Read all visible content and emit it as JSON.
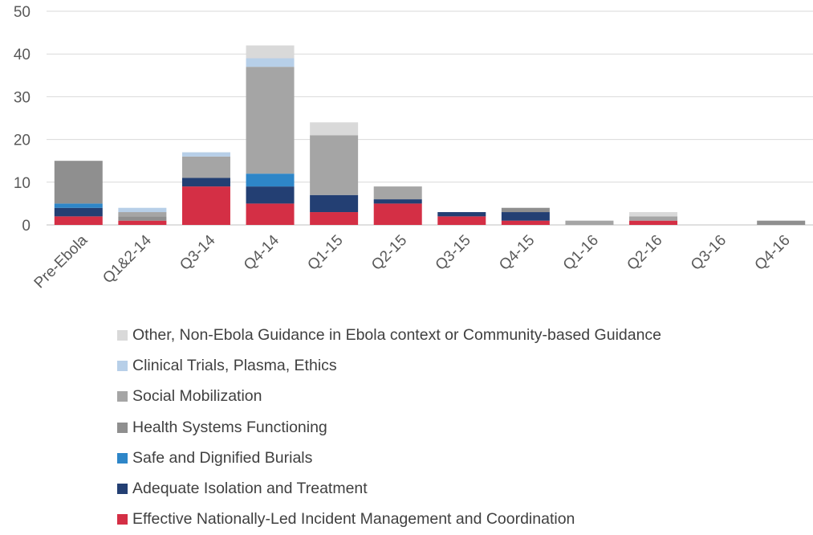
{
  "chart_data": {
    "type": "bar",
    "stacked": true,
    "categories": [
      "Pre-Ebola",
      "Q1&2-14",
      "Q3-14",
      "Q4-14",
      "Q1-15",
      "Q2-15",
      "Q3-15",
      "Q4-15",
      "Q1-16",
      "Q2-16",
      "Q3-16",
      "Q4-16"
    ],
    "ylim": [
      0,
      50
    ],
    "yticks": [
      0,
      10,
      20,
      30,
      40,
      50
    ],
    "grid": true,
    "legend_position": "bottom",
    "series": [
      {
        "name": "Effective Nationally-Led Incident Management and Coordination",
        "color": "#d42f45",
        "values": [
          2,
          1,
          9,
          5,
          3,
          5,
          2,
          1,
          0,
          1,
          0,
          0
        ]
      },
      {
        "name": "Adequate Isolation and Treatment",
        "color": "#233f73",
        "values": [
          2,
          0,
          2,
          4,
          4,
          1,
          1,
          2,
          0,
          0,
          0,
          0
        ]
      },
      {
        "name": "Safe and Dignified Burials",
        "color": "#2e86c8",
        "values": [
          1,
          0,
          0,
          3,
          0,
          0,
          0,
          0,
          0,
          0,
          0,
          0
        ]
      },
      {
        "name": "Health Systems Functioning",
        "color": "#8f8f8f",
        "values": [
          10,
          1,
          0,
          0,
          0,
          0,
          0,
          1,
          0,
          0,
          0,
          1
        ]
      },
      {
        "name": "Social Mobilization",
        "color": "#a5a5a5",
        "values": [
          0,
          1,
          5,
          25,
          14,
          3,
          0,
          0,
          1,
          1,
          0,
          0
        ]
      },
      {
        "name": "Clinical Trials, Plasma, Ethics",
        "color": "#b7cfe8",
        "values": [
          0,
          1,
          1,
          2,
          0,
          0,
          0,
          0,
          0,
          0,
          0,
          0
        ]
      },
      {
        "name": "Other, Non-Ebola Guidance in Ebola context or Community-based Guidance",
        "color": "#d9d9d9",
        "values": [
          0,
          0,
          0,
          3,
          3,
          0,
          0,
          0,
          0,
          1,
          0,
          0
        ]
      }
    ]
  }
}
